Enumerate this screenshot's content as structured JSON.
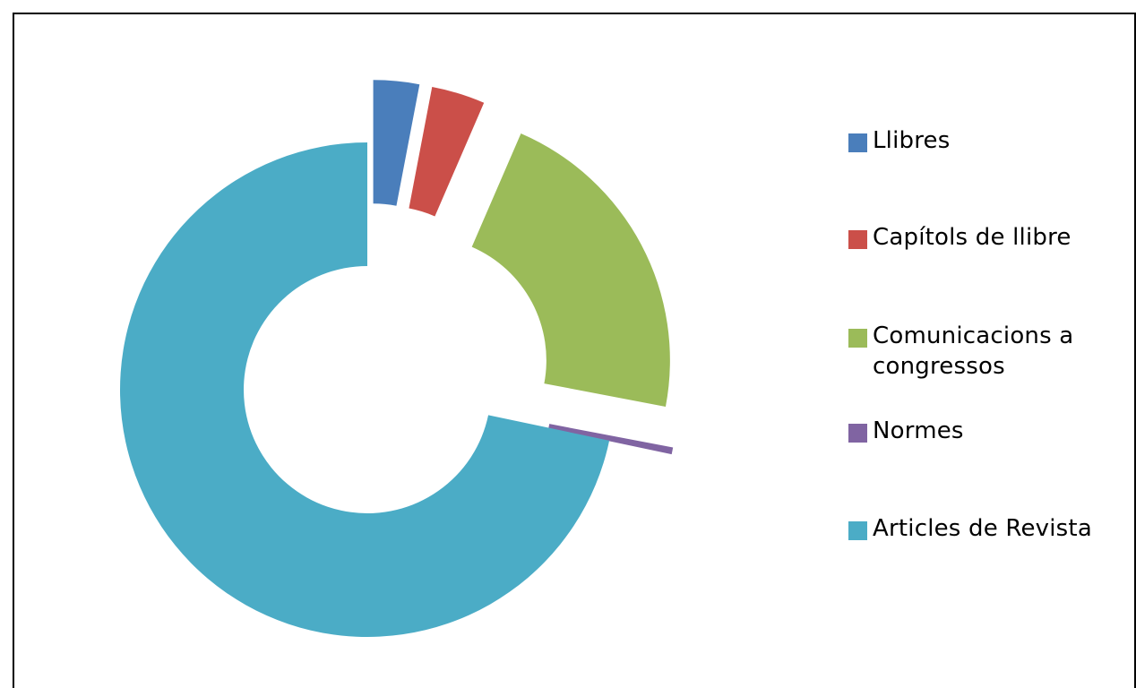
{
  "chart_data": {
    "type": "pie",
    "variant": "exploded-donut",
    "title": "",
    "series": [
      {
        "name": "Llibres",
        "value": 3.0,
        "color": "#4a7ebb"
      },
      {
        "name": "Capítols de llibre",
        "value": 3.5,
        "color": "#cb4f49"
      },
      {
        "name": "Comunicacions a congressos",
        "value": 21.5,
        "color": "#9bbb59"
      },
      {
        "name": "Normes",
        "value": 0.3,
        "color": "#8064a2"
      },
      {
        "name": "Articles de Revista",
        "value": 71.7,
        "color": "#4bacc6"
      }
    ],
    "legend_position": "right",
    "data_labels": false
  }
}
